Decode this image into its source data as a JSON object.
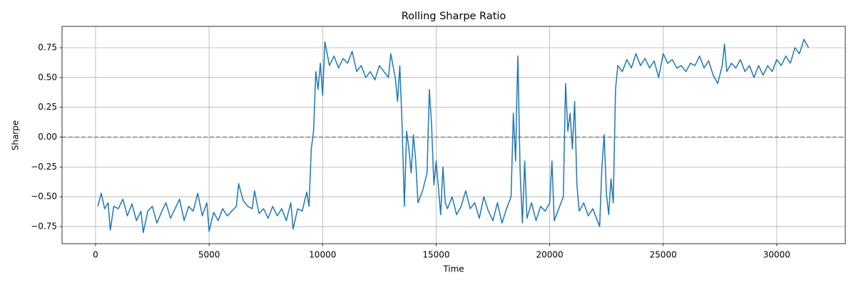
{
  "chart_data": {
    "type": "line",
    "title": "Rolling Sharpe Ratio",
    "x_label": "Time",
    "y_label": "Sharpe",
    "color": "#1f77b4",
    "grid": true,
    "hline": {
      "value": 0,
      "color": "#808080"
    },
    "xlim": [
      -1476,
      33020
    ],
    "xticks": [
      0,
      5000,
      10000,
      15000,
      20000,
      25000,
      30000
    ],
    "ylim": [
      -0.893,
      0.929
    ],
    "yticks": [
      {
        "value": -0.75,
        "label": "−0.75"
      },
      {
        "value": -0.5,
        "label": "−0.50"
      },
      {
        "value": -0.25,
        "label": "−0.25"
      },
      {
        "value": 0,
        "label": "0.00"
      },
      {
        "value": 0.25,
        "label": "0.25"
      },
      {
        "value": 0.5,
        "label": "0.50"
      },
      {
        "value": 0.75,
        "label": "0.75"
      }
    ],
    "x": [
      100,
      250,
      400,
      550,
      650,
      800,
      1000,
      1200,
      1400,
      1600,
      1800,
      2000,
      2100,
      2300,
      2500,
      2700,
      2900,
      3100,
      3300,
      3500,
      3700,
      3900,
      4100,
      4300,
      4500,
      4700,
      4900,
      5000,
      5200,
      5400,
      5600,
      5800,
      6000,
      6200,
      6300,
      6500,
      6700,
      6900,
      7000,
      7200,
      7400,
      7600,
      7800,
      8000,
      8200,
      8400,
      8600,
      8700,
      8900,
      9100,
      9300,
      9400,
      9500,
      9600,
      9700,
      9800,
      9900,
      10000,
      10100,
      10300,
      10500,
      10700,
      10900,
      11100,
      11300,
      11500,
      11700,
      11900,
      12100,
      12300,
      12500,
      12700,
      12900,
      13000,
      13200,
      13300,
      13400,
      13500,
      13600,
      13700,
      13800,
      13900,
      14000,
      14100,
      14200,
      14400,
      14600,
      14700,
      14800,
      14900,
      15000,
      15200,
      15300,
      15400,
      15500,
      15700,
      15900,
      16100,
      16300,
      16500,
      16700,
      16900,
      17100,
      17300,
      17500,
      17700,
      17900,
      18100,
      18300,
      18400,
      18500,
      18550,
      18600,
      18700,
      18800,
      18900,
      19000,
      19200,
      19400,
      19600,
      19800,
      20000,
      20100,
      20200,
      20400,
      20600,
      20700,
      20800,
      20900,
      21000,
      21100,
      21200,
      21300,
      21500,
      21700,
      21900,
      22100,
      22200,
      22300,
      22400,
      22500,
      22600,
      22700,
      22800,
      22900,
      23000,
      23200,
      23400,
      23600,
      23800,
      24000,
      24200,
      24400,
      24600,
      24800,
      25000,
      25200,
      25400,
      25600,
      25800,
      26000,
      26200,
      26400,
      26600,
      26800,
      27000,
      27200,
      27400,
      27600,
      27700,
      27800,
      28000,
      28200,
      28400,
      28600,
      28800,
      29000,
      29200,
      29400,
      29600,
      29800,
      30000,
      30200,
      30400,
      30600,
      30800,
      31000,
      31200,
      31400
    ],
    "values": [
      -0.58,
      -0.47,
      -0.6,
      -0.55,
      -0.78,
      -0.58,
      -0.6,
      -0.52,
      -0.66,
      -0.56,
      -0.7,
      -0.62,
      -0.8,
      -0.62,
      -0.58,
      -0.72,
      -0.63,
      -0.55,
      -0.68,
      -0.6,
      -0.52,
      -0.7,
      -0.58,
      -0.62,
      -0.47,
      -0.66,
      -0.55,
      -0.79,
      -0.63,
      -0.7,
      -0.6,
      -0.66,
      -0.62,
      -0.58,
      -0.39,
      -0.53,
      -0.58,
      -0.6,
      -0.45,
      -0.64,
      -0.6,
      -0.68,
      -0.58,
      -0.66,
      -0.6,
      -0.7,
      -0.55,
      -0.77,
      -0.6,
      -0.62,
      -0.46,
      -0.58,
      -0.1,
      0.05,
      0.55,
      0.4,
      0.62,
      0.35,
      0.8,
      0.6,
      0.68,
      0.58,
      0.66,
      0.62,
      0.72,
      0.55,
      0.6,
      0.5,
      0.55,
      0.48,
      0.6,
      0.55,
      0.5,
      0.7,
      0.5,
      0.3,
      0.6,
      0.1,
      -0.58,
      0.05,
      -0.1,
      -0.3,
      0.02,
      -0.2,
      -0.55,
      -0.45,
      -0.3,
      0.4,
      0.1,
      -0.4,
      -0.2,
      -0.65,
      -0.25,
      -0.55,
      -0.6,
      -0.5,
      -0.65,
      -0.58,
      -0.45,
      -0.6,
      -0.55,
      -0.68,
      -0.5,
      -0.62,
      -0.7,
      -0.55,
      -0.72,
      -0.6,
      -0.5,
      0.2,
      -0.2,
      0.3,
      0.68,
      -0.3,
      -0.72,
      -0.2,
      -0.68,
      -0.55,
      -0.7,
      -0.58,
      -0.62,
      -0.55,
      -0.2,
      -0.7,
      -0.6,
      -0.5,
      0.45,
      0.05,
      0.2,
      -0.1,
      0.3,
      -0.4,
      -0.62,
      -0.55,
      -0.66,
      -0.6,
      -0.7,
      -0.75,
      -0.25,
      0.02,
      -0.48,
      -0.65,
      -0.35,
      -0.55,
      0.4,
      0.6,
      0.55,
      0.65,
      0.58,
      0.7,
      0.6,
      0.66,
      0.58,
      0.64,
      0.5,
      0.7,
      0.62,
      0.65,
      0.58,
      0.6,
      0.55,
      0.62,
      0.6,
      0.68,
      0.58,
      0.64,
      0.52,
      0.45,
      0.6,
      0.78,
      0.55,
      0.62,
      0.58,
      0.65,
      0.55,
      0.6,
      0.5,
      0.6,
      0.52,
      0.6,
      0.55,
      0.65,
      0.6,
      0.68,
      0.62,
      0.75,
      0.7,
      0.82,
      0.75
    ]
  }
}
